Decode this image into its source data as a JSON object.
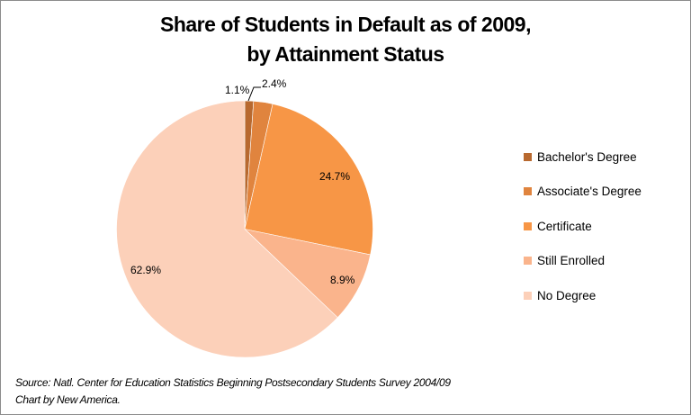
{
  "title_line1": "Share of Students in Default as of 2009,",
  "title_line2": "by Attainment Status",
  "chart_data": {
    "type": "pie",
    "title": "Share of Students in Default as of 2009, by Attainment Status",
    "categories": [
      "Bachelor's Degree",
      "Associate's Degree",
      "Certificate",
      "Still Enrolled",
      "No Degree"
    ],
    "values": [
      1.1,
      2.4,
      24.7,
      8.9,
      62.9
    ],
    "labels": [
      "1.1%",
      "2.4%",
      "24.7%",
      "8.9%",
      "62.9%"
    ],
    "colors": [
      "#b8692f",
      "#e0843e",
      "#f79646",
      "#fab48c",
      "#fcd0b9"
    ],
    "legend_position": "right",
    "start_angle": "12 o'clock, clockwise"
  },
  "legend": [
    {
      "label": "Bachelor's Degree",
      "color": "#b8692f"
    },
    {
      "label": "Associate's Degree",
      "color": "#e0843e"
    },
    {
      "label": "Certificate",
      "color": "#f79646"
    },
    {
      "label": "Still Enrolled",
      "color": "#fab48c"
    },
    {
      "label": "No Degree",
      "color": "#fcd0b9"
    }
  ],
  "source_line1": "Source: Natl. Center for Education Statistics Beginning Postsecondary  Students Survey 2004/09",
  "source_line2": "Chart by New America."
}
